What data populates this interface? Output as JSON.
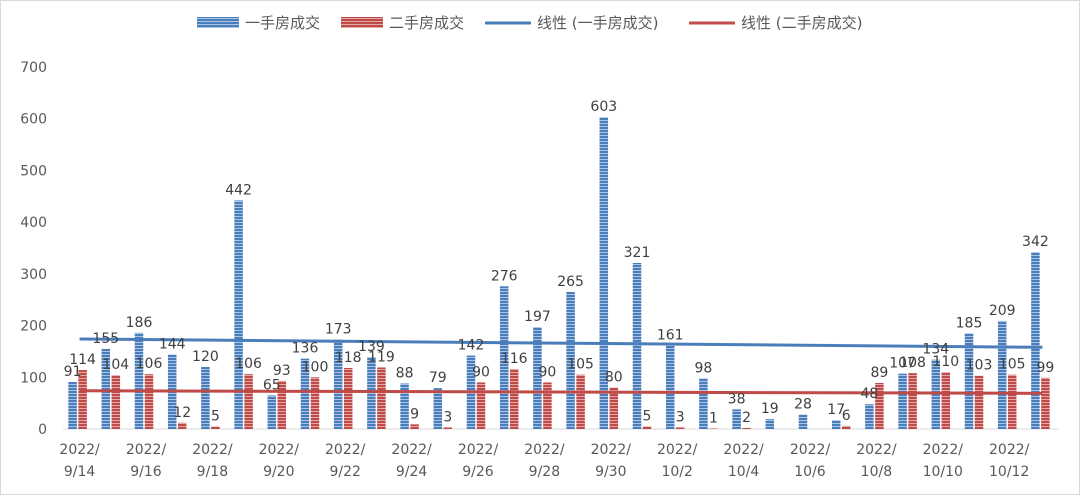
{
  "chart_data": {
    "type": "bar",
    "title": "",
    "xlabel": "",
    "ylabel": "",
    "ylim": [
      0,
      700
    ],
    "yticks": [
      "0",
      "100",
      "200",
      "300",
      "400",
      "500",
      "600",
      "700"
    ],
    "grid": false,
    "legend_position": "top-center",
    "categories": [
      "2022/9/14",
      "2022/9/15",
      "2022/9/16",
      "2022/9/17",
      "2022/9/18",
      "2022/9/19",
      "2022/9/20",
      "2022/9/21",
      "2022/9/22",
      "2022/9/23",
      "2022/9/24",
      "2022/9/25",
      "2022/9/26",
      "2022/9/27",
      "2022/9/28",
      "2022/9/29",
      "2022/9/30",
      "2022/10/1",
      "2022/10/2",
      "2022/10/3",
      "2022/10/4",
      "2022/10/5",
      "2022/10/6",
      "2022/10/7",
      "2022/10/8",
      "2022/10/9",
      "2022/10/10",
      "2022/10/11",
      "2022/10/12",
      "2022/10/13"
    ],
    "xtick_labels": [
      {
        "line1": "2022/",
        "line2": "9/14"
      },
      {
        "line1": "2022/",
        "line2": "9/16"
      },
      {
        "line1": "2022/",
        "line2": "9/18"
      },
      {
        "line1": "2022/",
        "line2": "9/20"
      },
      {
        "line1": "2022/",
        "line2": "9/22"
      },
      {
        "line1": "2022/",
        "line2": "9/24"
      },
      {
        "line1": "2022/",
        "line2": "9/26"
      },
      {
        "line1": "2022/",
        "line2": "9/28"
      },
      {
        "line1": "2022/",
        "line2": "9/30"
      },
      {
        "line1": "2022/",
        "line2": "10/2"
      },
      {
        "line1": "2022/",
        "line2": "10/4"
      },
      {
        "line1": "2022/",
        "line2": "10/6"
      },
      {
        "line1": "2022/",
        "line2": "10/8"
      },
      {
        "line1": "2022/",
        "line2": "10/10"
      },
      {
        "line1": "2022/",
        "line2": "10/12"
      }
    ],
    "series": [
      {
        "name": "一手房成交",
        "color": "#4a7ebb",
        "values": [
          91,
          155,
          186,
          144,
          120,
          442,
          65,
          136,
          173,
          139,
          88,
          79,
          142,
          276,
          197,
          265,
          603,
          321,
          161,
          98,
          38,
          19,
          28,
          17,
          48,
          107,
          134,
          185,
          209,
          342
        ],
        "labels": [
          "91",
          "155",
          "186",
          "144",
          "120",
          "442",
          "65",
          "136",
          "173",
          "139",
          "88",
          "79",
          "142",
          "276",
          "197",
          "265",
          "603",
          "321",
          "161",
          "98",
          "38",
          "19",
          "28",
          "17",
          "48",
          "107",
          "134",
          "185",
          "209",
          "342"
        ]
      },
      {
        "name": "二手房成交",
        "color": "#be4b48",
        "values": [
          114,
          104,
          106,
          12,
          5,
          106,
          93,
          100,
          118,
          119,
          9,
          3,
          90,
          116,
          90,
          105,
          80,
          5,
          3,
          1,
          2,
          0,
          0,
          6,
          89,
          108,
          110,
          103,
          105,
          99
        ],
        "labels": [
          "114",
          "104",
          "106",
          "12",
          "5",
          "106",
          "93",
          "100",
          "118",
          "119",
          "9",
          "3",
          "90",
          "116",
          "90",
          "105",
          "80",
          "5",
          "3",
          "1",
          "2",
          "",
          "",
          "6",
          "89",
          "108",
          "110",
          "103",
          "105",
          "99"
        ]
      }
    ],
    "trendlines": [
      {
        "name": "线性 (一手房成交)",
        "color": "#4a7ebb",
        "start": 174,
        "end": 158
      },
      {
        "name": "线性 (二手房成交)",
        "color": "#be4b48",
        "start": 74,
        "end": 69
      }
    ]
  }
}
